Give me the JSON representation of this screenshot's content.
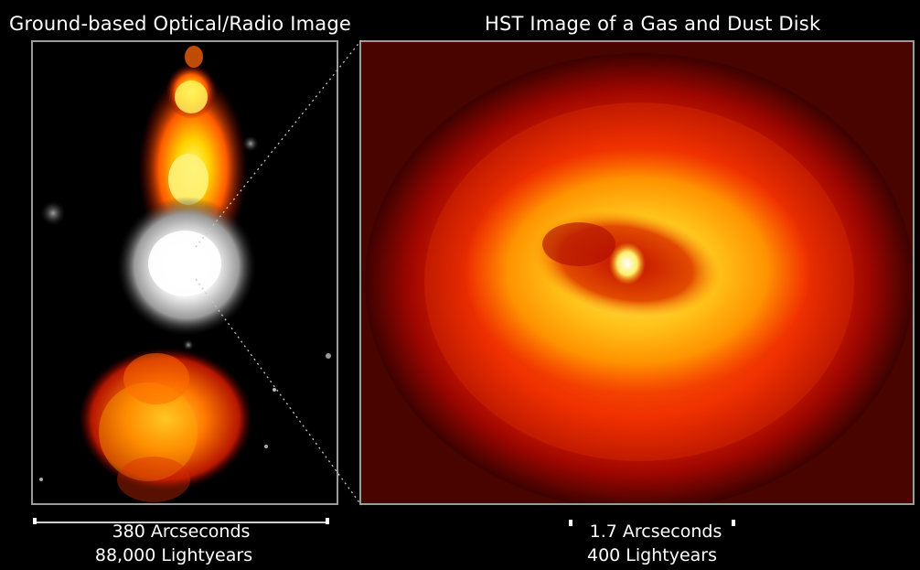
{
  "titles": {
    "left": "Ground-based Optical/Radio Image",
    "right": "HST Image of a Gas and Dust Disk"
  },
  "scale_left": {
    "arcseconds": "380 Arcseconds",
    "lightyears": "88,000 Lightyears"
  },
  "scale_right": {
    "arcseconds": "1.7 Arcseconds",
    "lightyears": "400 Lightyears"
  },
  "colors": {
    "background": "#000000",
    "frame": "#9b9b9b",
    "text": "#ffffff",
    "disk_outer": "#d62400",
    "disk_ring": "#ffb600",
    "core": "#ffffff"
  }
}
